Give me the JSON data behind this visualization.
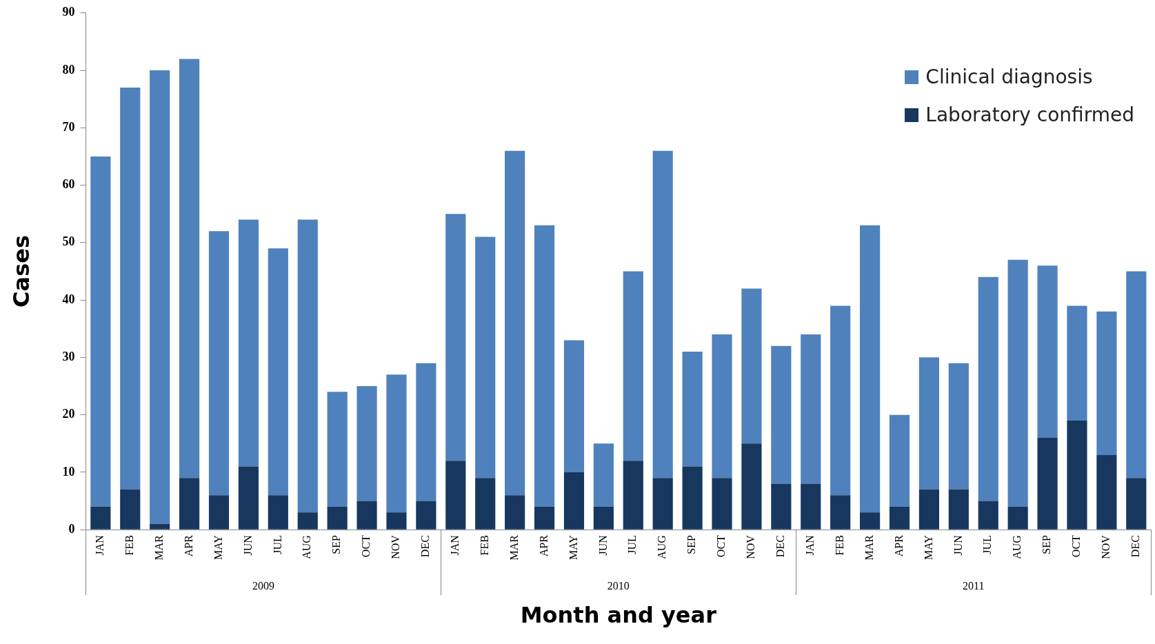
{
  "chart_data": {
    "type": "bar",
    "stacked": true,
    "xlabel": "Month and year",
    "ylabel": "Cases",
    "categories": [
      "JAN",
      "FEB",
      "MAR",
      "APR",
      "MAY",
      "JUN",
      "JUL",
      "AUG",
      "SEP",
      "OCT",
      "NOV",
      "DEC",
      "JAN",
      "FEB",
      "MAR",
      "APR",
      "MAY",
      "JUN",
      "JUL",
      "AUG",
      "SEP",
      "OCT",
      "NOV",
      "DEC",
      "JAN",
      "FEB",
      "MAR",
      "APR",
      "MAY",
      "JUN",
      "JUL",
      "AUG",
      "SEP",
      "OCT",
      "NOV",
      "DEC"
    ],
    "annotations": [
      "2009",
      "2010",
      "2011"
    ],
    "series": [
      {
        "name": "Laboratory confirmed",
        "color": "#17375e",
        "values": [
          4,
          7,
          1,
          9,
          6,
          11,
          6,
          3,
          4,
          5,
          3,
          5,
          12,
          9,
          6,
          4,
          10,
          4,
          12,
          9,
          11,
          9,
          15,
          8,
          8,
          6,
          3,
          4,
          7,
          7,
          5,
          4,
          16,
          19,
          13,
          9
        ]
      },
      {
        "name": "Clinical diagnosis",
        "color": "#4f81bd",
        "values": [
          61,
          70,
          79,
          73,
          46,
          43,
          43,
          51,
          20,
          20,
          24,
          24,
          43,
          42,
          60,
          49,
          23,
          11,
          33,
          57,
          20,
          25,
          27,
          24,
          26,
          33,
          50,
          16,
          23,
          22,
          39,
          43,
          30,
          20,
          25,
          36
        ]
      }
    ],
    "ylim": [
      0,
      90
    ],
    "yticks": [
      0,
      10,
      20,
      30,
      40,
      50,
      60,
      70,
      80,
      90
    ],
    "grid": false,
    "legend": "top right"
  }
}
